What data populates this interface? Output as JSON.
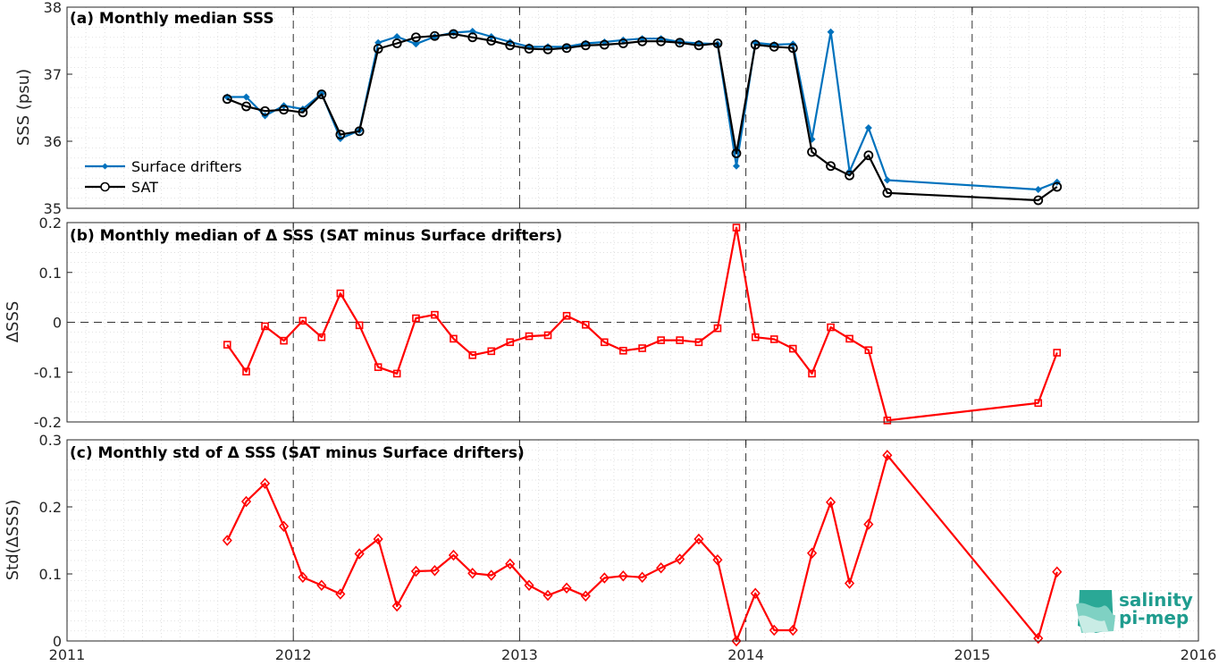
{
  "x_axis": {
    "ticks": [
      2011,
      2012,
      2013,
      2014,
      2015,
      2016
    ],
    "tick_labels": [
      "2011",
      "2012",
      "2013",
      "2014",
      "2015",
      "2016"
    ],
    "range": [
      2011,
      2016
    ]
  },
  "logo": {
    "line1": "salinity",
    "line2": "pi-mep"
  },
  "colors": {
    "drifters": "#0072bd",
    "sat": "#000000",
    "delta": "#ff0000"
  },
  "chart_data": [
    {
      "type": "line",
      "title": "(a) Monthly median SSS",
      "ylabel": "SSS (psu)",
      "ylim": [
        35,
        38
      ],
      "yticks": [
        35,
        36,
        37,
        38
      ],
      "ytick_labels": [
        "35",
        "36",
        "37",
        "38"
      ],
      "grid": true,
      "legend": "bottom-left",
      "x": [
        2011.708,
        2011.792,
        2011.875,
        2011.958,
        2012.042,
        2012.125,
        2012.208,
        2012.292,
        2012.375,
        2012.458,
        2012.542,
        2012.625,
        2012.708,
        2012.792,
        2012.875,
        2012.958,
        2013.042,
        2013.125,
        2013.208,
        2013.292,
        2013.375,
        2013.458,
        2013.542,
        2013.625,
        2013.708,
        2013.792,
        2013.875,
        2013.958,
        2014.042,
        2014.125,
        2014.208,
        2014.292,
        2014.375,
        2014.458,
        2014.542,
        2014.625,
        2015.292,
        2015.375
      ],
      "series": [
        {
          "name": "Surface drifters",
          "color": "#0072bd",
          "marker": "diamond-filled",
          "values": [
            36.66,
            36.66,
            36.38,
            36.53,
            36.48,
            36.71,
            36.04,
            36.16,
            37.47,
            37.56,
            37.45,
            37.56,
            37.62,
            37.64,
            37.56,
            37.48,
            37.41,
            37.41,
            37.41,
            37.46,
            37.48,
            37.51,
            37.53,
            37.53,
            37.48,
            37.46,
            37.45,
            35.63,
            37.47,
            37.44,
            37.45,
            36.03,
            37.63,
            35.55,
            36.2,
            35.42,
            35.28,
            35.39
          ]
        },
        {
          "name": "SAT",
          "color": "#000000",
          "marker": "circle",
          "values": [
            36.63,
            36.52,
            36.45,
            36.47,
            36.43,
            36.7,
            36.1,
            36.15,
            37.38,
            37.46,
            37.55,
            37.57,
            37.6,
            37.55,
            37.5,
            37.43,
            37.38,
            37.37,
            37.39,
            37.43,
            37.44,
            37.46,
            37.49,
            37.49,
            37.47,
            37.43,
            37.46,
            35.82,
            37.44,
            37.41,
            37.39,
            35.84,
            35.63,
            35.49,
            35.79,
            35.23,
            35.12,
            35.32
          ]
        }
      ]
    },
    {
      "type": "line",
      "title": "(b) Monthly median of Δ SSS (SAT minus Surface drifters)",
      "ylabel": "ΔSSS",
      "ylim": [
        -0.2,
        0.2
      ],
      "yticks": [
        -0.2,
        -0.1,
        0,
        0.1,
        0.2
      ],
      "ytick_labels": [
        "-0.2",
        "-0.1",
        "0",
        "0.1",
        "0.2"
      ],
      "grid": true,
      "zero_line": true,
      "x": [
        2011.708,
        2011.792,
        2011.875,
        2011.958,
        2012.042,
        2012.125,
        2012.208,
        2012.292,
        2012.375,
        2012.458,
        2012.542,
        2012.625,
        2012.708,
        2012.792,
        2012.875,
        2012.958,
        2013.042,
        2013.125,
        2013.208,
        2013.292,
        2013.375,
        2013.458,
        2013.542,
        2013.625,
        2013.708,
        2013.792,
        2013.875,
        2013.958,
        2014.042,
        2014.125,
        2014.208,
        2014.292,
        2014.375,
        2014.458,
        2014.542,
        2014.625,
        2015.292,
        2015.375
      ],
      "series": [
        {
          "name": "",
          "color": "#ff0000",
          "marker": "square",
          "values": [
            -0.045,
            -0.099,
            -0.008,
            -0.037,
            0.003,
            -0.03,
            0.058,
            -0.006,
            -0.09,
            -0.103,
            0.008,
            0.015,
            -0.033,
            -0.066,
            -0.058,
            -0.04,
            -0.028,
            -0.026,
            0.013,
            -0.005,
            -0.04,
            -0.057,
            -0.052,
            -0.036,
            -0.036,
            -0.04,
            -0.012,
            0.19,
            -0.03,
            -0.034,
            -0.053,
            -0.103,
            -0.01,
            -0.033,
            -0.056,
            -0.197,
            -0.162,
            -0.061
          ]
        }
      ]
    },
    {
      "type": "line",
      "title": "(c) Monthly std of Δ SSS (SAT minus Surface drifters)",
      "ylabel": "Std(ΔSSS)",
      "ylim": [
        0,
        0.3
      ],
      "yticks": [
        0,
        0.1,
        0.2,
        0.3
      ],
      "ytick_labels": [
        "0",
        "0.1",
        "0.2",
        "0.3"
      ],
      "grid": true,
      "x": [
        2011.708,
        2011.792,
        2011.875,
        2011.958,
        2012.042,
        2012.125,
        2012.208,
        2012.292,
        2012.375,
        2012.458,
        2012.542,
        2012.625,
        2012.708,
        2012.792,
        2012.875,
        2012.958,
        2013.042,
        2013.125,
        2013.208,
        2013.292,
        2013.375,
        2013.458,
        2013.542,
        2013.625,
        2013.708,
        2013.792,
        2013.875,
        2013.958,
        2014.042,
        2014.125,
        2014.208,
        2014.292,
        2014.375,
        2014.458,
        2014.542,
        2014.625,
        2015.292,
        2015.375
      ],
      "series": [
        {
          "name": "",
          "color": "#ff0000",
          "marker": "diamond",
          "values": [
            0.15,
            0.208,
            0.235,
            0.171,
            0.095,
            0.083,
            0.07,
            0.13,
            0.152,
            0.052,
            0.104,
            0.105,
            0.128,
            0.101,
            0.098,
            0.115,
            0.083,
            0.068,
            0.079,
            0.067,
            0.094,
            0.097,
            0.095,
            0.109,
            0.122,
            0.152,
            0.121,
            0.0,
            0.071,
            0.016,
            0.016,
            0.131,
            0.207,
            0.086,
            0.174,
            0.277,
            0.004,
            0.103
          ]
        }
      ]
    }
  ]
}
